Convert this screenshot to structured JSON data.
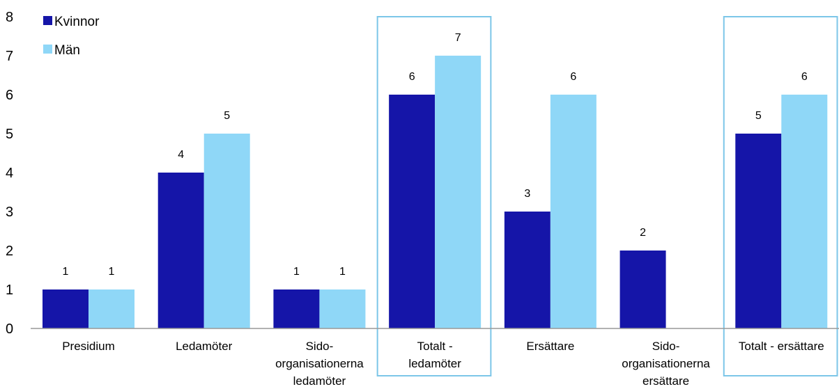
{
  "chart_data": {
    "type": "bar",
    "categories": [
      [
        "Presidium"
      ],
      [
        "Ledamöter"
      ],
      [
        "Sido-",
        "organisationerna",
        "ledamöter"
      ],
      [
        "Totalt -",
        "ledamöter"
      ],
      [
        "Ersättare"
      ],
      [
        "Sido-",
        "organisationerna",
        "ersättare"
      ],
      [
        "Totalt - ersättare"
      ]
    ],
    "series": [
      {
        "name": "Kvinnor",
        "color": "#1515a8",
        "values": [
          1,
          4,
          1,
          6,
          3,
          2,
          5
        ]
      },
      {
        "name": "Män",
        "color": "#8fd7f7",
        "values": [
          1,
          5,
          1,
          7,
          6,
          0,
          6
        ]
      }
    ],
    "data_labels": [
      [
        "1",
        "4",
        "1",
        "6",
        "3",
        "2",
        "5"
      ],
      [
        "1",
        "5",
        "1",
        "7",
        "6",
        "",
        "6"
      ]
    ],
    "yticks": [
      "0",
      "1",
      "2",
      "3",
      "4",
      "5",
      "6",
      "7",
      "8"
    ],
    "ylim": [
      0,
      8
    ],
    "highlighted_categories": [
      3,
      6
    ],
    "highlight_color": "#7cc6e8",
    "legend_placement": "top-left",
    "grid": false
  }
}
